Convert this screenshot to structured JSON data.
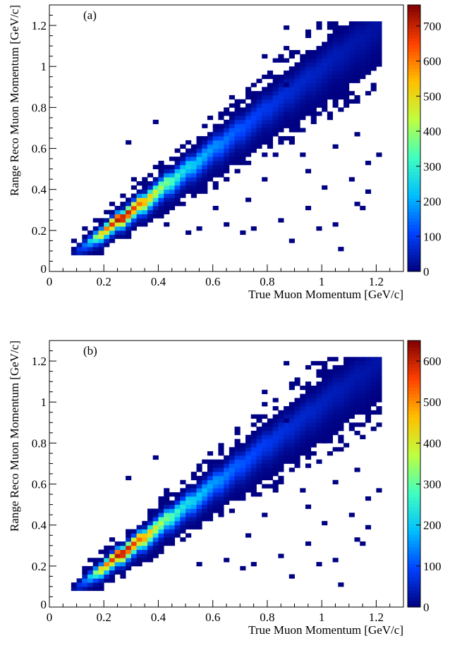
{
  "colors": {
    "axis": "#000000",
    "background": "#ffffff",
    "palette": [
      "#00007f",
      "#0040ff",
      "#00bfff",
      "#40ffbf",
      "#bfff40",
      "#ffbf00",
      "#ff4000",
      "#7f0000"
    ]
  },
  "chart_data": [
    {
      "type": "heatmap",
      "panel_label": "(a)",
      "xlabel": "True Muon Momentum [GeV/c]",
      "ylabel": "Range Reco Muon Momentum [GeV/c]",
      "xlim": [
        0,
        1.3
      ],
      "ylim": [
        0,
        1.3
      ],
      "x_ticks": [
        "0",
        "0.2",
        "0.4",
        "0.6",
        "0.8",
        "1",
        "1.2"
      ],
      "y_ticks": [
        "0",
        "0.2",
        "0.4",
        "0.6",
        "0.8",
        "1",
        "1.2"
      ],
      "bin_width": 0.02,
      "data_range": [
        0.09,
        1.22
      ],
      "z_range": [
        0,
        760
      ],
      "z_ticks": [
        "0",
        "100",
        "200",
        "300",
        "400",
        "500",
        "600",
        "700"
      ],
      "peak_value": 760,
      "peak_at": 0.27,
      "diagonal_profile": [
        {
          "x": 0.1,
          "z": 25
        },
        {
          "x": 0.15,
          "z": 180
        },
        {
          "x": 0.2,
          "z": 520
        },
        {
          "x": 0.25,
          "z": 720
        },
        {
          "x": 0.27,
          "z": 760
        },
        {
          "x": 0.3,
          "z": 700
        },
        {
          "x": 0.35,
          "z": 600
        },
        {
          "x": 0.4,
          "z": 460
        },
        {
          "x": 0.45,
          "z": 360
        },
        {
          "x": 0.5,
          "z": 270
        },
        {
          "x": 0.6,
          "z": 190
        },
        {
          "x": 0.7,
          "z": 130
        },
        {
          "x": 0.8,
          "z": 95
        },
        {
          "x": 0.9,
          "z": 70
        },
        {
          "x": 1.0,
          "z": 55
        },
        {
          "x": 1.1,
          "z": 40
        },
        {
          "x": 1.2,
          "z": 30
        }
      ],
      "outliers": [
        [
          0.87,
          1.19
        ],
        [
          0.79,
          1.04
        ],
        [
          0.38,
          0.73
        ],
        [
          0.29,
          0.62
        ],
        [
          0.87,
          0.9
        ],
        [
          1.12,
          0.66
        ],
        [
          1.17,
          0.52
        ],
        [
          0.95,
          0.49
        ],
        [
          1.12,
          0.33
        ],
        [
          1.05,
          0.22
        ],
        [
          1.07,
          0.11
        ],
        [
          0.72,
          0.34
        ],
        [
          0.65,
          0.23
        ],
        [
          0.85,
          0.25
        ],
        [
          1.15,
          0.3
        ],
        [
          0.9,
          0.7
        ],
        [
          1.0,
          0.8
        ],
        [
          0.6,
          0.3
        ],
        [
          0.55,
          0.2
        ],
        [
          0.75,
          0.2
        ],
        [
          0.95,
          0.3
        ],
        [
          1.0,
          0.4
        ],
        [
          1.18,
          0.38
        ],
        [
          0.7,
          0.18
        ],
        [
          0.5,
          0.18
        ],
        [
          0.78,
          0.45
        ],
        [
          1.1,
          0.45
        ],
        [
          0.92,
          0.58
        ],
        [
          1.05,
          0.6
        ],
        [
          0.82,
          0.56
        ],
        [
          0.4,
          0.5
        ],
        [
          0.3,
          0.45
        ],
        [
          0.48,
          0.6
        ],
        [
          0.65,
          0.45
        ],
        [
          0.6,
          0.4
        ],
        [
          0.98,
          0.2
        ],
        [
          1.2,
          0.56
        ],
        [
          0.88,
          0.15
        ],
        [
          0.68,
          0.52
        ],
        [
          0.42,
          0.22
        ]
      ]
    },
    {
      "type": "heatmap",
      "panel_label": "(b)",
      "xlabel": "True Muon Momentum [GeV/c]",
      "ylabel": "Range Reco Muon Momentum [GeV/c]",
      "xlim": [
        0,
        1.3
      ],
      "ylim": [
        0,
        1.3
      ],
      "x_ticks": [
        "0",
        "0.2",
        "0.4",
        "0.6",
        "0.8",
        "1",
        "1.2"
      ],
      "y_ticks": [
        "0",
        "0.2",
        "0.4",
        "0.6",
        "0.8",
        "1",
        "1.2"
      ],
      "bin_width": 0.02,
      "data_range": [
        0.09,
        1.22
      ],
      "z_range": [
        0,
        650
      ],
      "z_ticks": [
        "0",
        "100",
        "200",
        "300",
        "400",
        "500",
        "600"
      ],
      "peak_value": 650,
      "peak_at": 0.27,
      "diagonal_profile": [
        {
          "x": 0.1,
          "z": 20
        },
        {
          "x": 0.15,
          "z": 150
        },
        {
          "x": 0.2,
          "z": 440
        },
        {
          "x": 0.25,
          "z": 610
        },
        {
          "x": 0.27,
          "z": 650
        },
        {
          "x": 0.3,
          "z": 600
        },
        {
          "x": 0.35,
          "z": 520
        },
        {
          "x": 0.4,
          "z": 400
        },
        {
          "x": 0.45,
          "z": 310
        },
        {
          "x": 0.5,
          "z": 240
        },
        {
          "x": 0.6,
          "z": 170
        },
        {
          "x": 0.7,
          "z": 115
        },
        {
          "x": 0.8,
          "z": 85
        },
        {
          "x": 0.9,
          "z": 62
        },
        {
          "x": 1.0,
          "z": 48
        },
        {
          "x": 1.1,
          "z": 36
        },
        {
          "x": 1.2,
          "z": 28
        }
      ],
      "outliers": [
        [
          0.87,
          1.19
        ],
        [
          0.79,
          1.04
        ],
        [
          0.38,
          0.73
        ],
        [
          0.29,
          0.62
        ],
        [
          0.87,
          0.9
        ],
        [
          1.12,
          0.66
        ],
        [
          1.17,
          0.52
        ],
        [
          0.95,
          0.49
        ],
        [
          1.12,
          0.33
        ],
        [
          1.05,
          0.22
        ],
        [
          1.07,
          0.11
        ],
        [
          0.72,
          0.34
        ],
        [
          0.65,
          0.23
        ],
        [
          0.85,
          0.25
        ],
        [
          1.15,
          0.3
        ],
        [
          1.0,
          0.8
        ],
        [
          0.55,
          0.2
        ],
        [
          0.75,
          0.2
        ],
        [
          0.95,
          0.3
        ],
        [
          1.0,
          0.4
        ],
        [
          1.18,
          0.38
        ],
        [
          0.7,
          0.18
        ],
        [
          0.78,
          0.45
        ],
        [
          1.1,
          0.45
        ],
        [
          0.92,
          0.58
        ],
        [
          1.05,
          0.6
        ],
        [
          0.82,
          0.56
        ],
        [
          0.4,
          0.5
        ],
        [
          0.48,
          0.6
        ],
        [
          0.98,
          0.2
        ],
        [
          1.2,
          0.56
        ],
        [
          0.88,
          0.15
        ],
        [
          0.68,
          0.52
        ]
      ]
    }
  ]
}
